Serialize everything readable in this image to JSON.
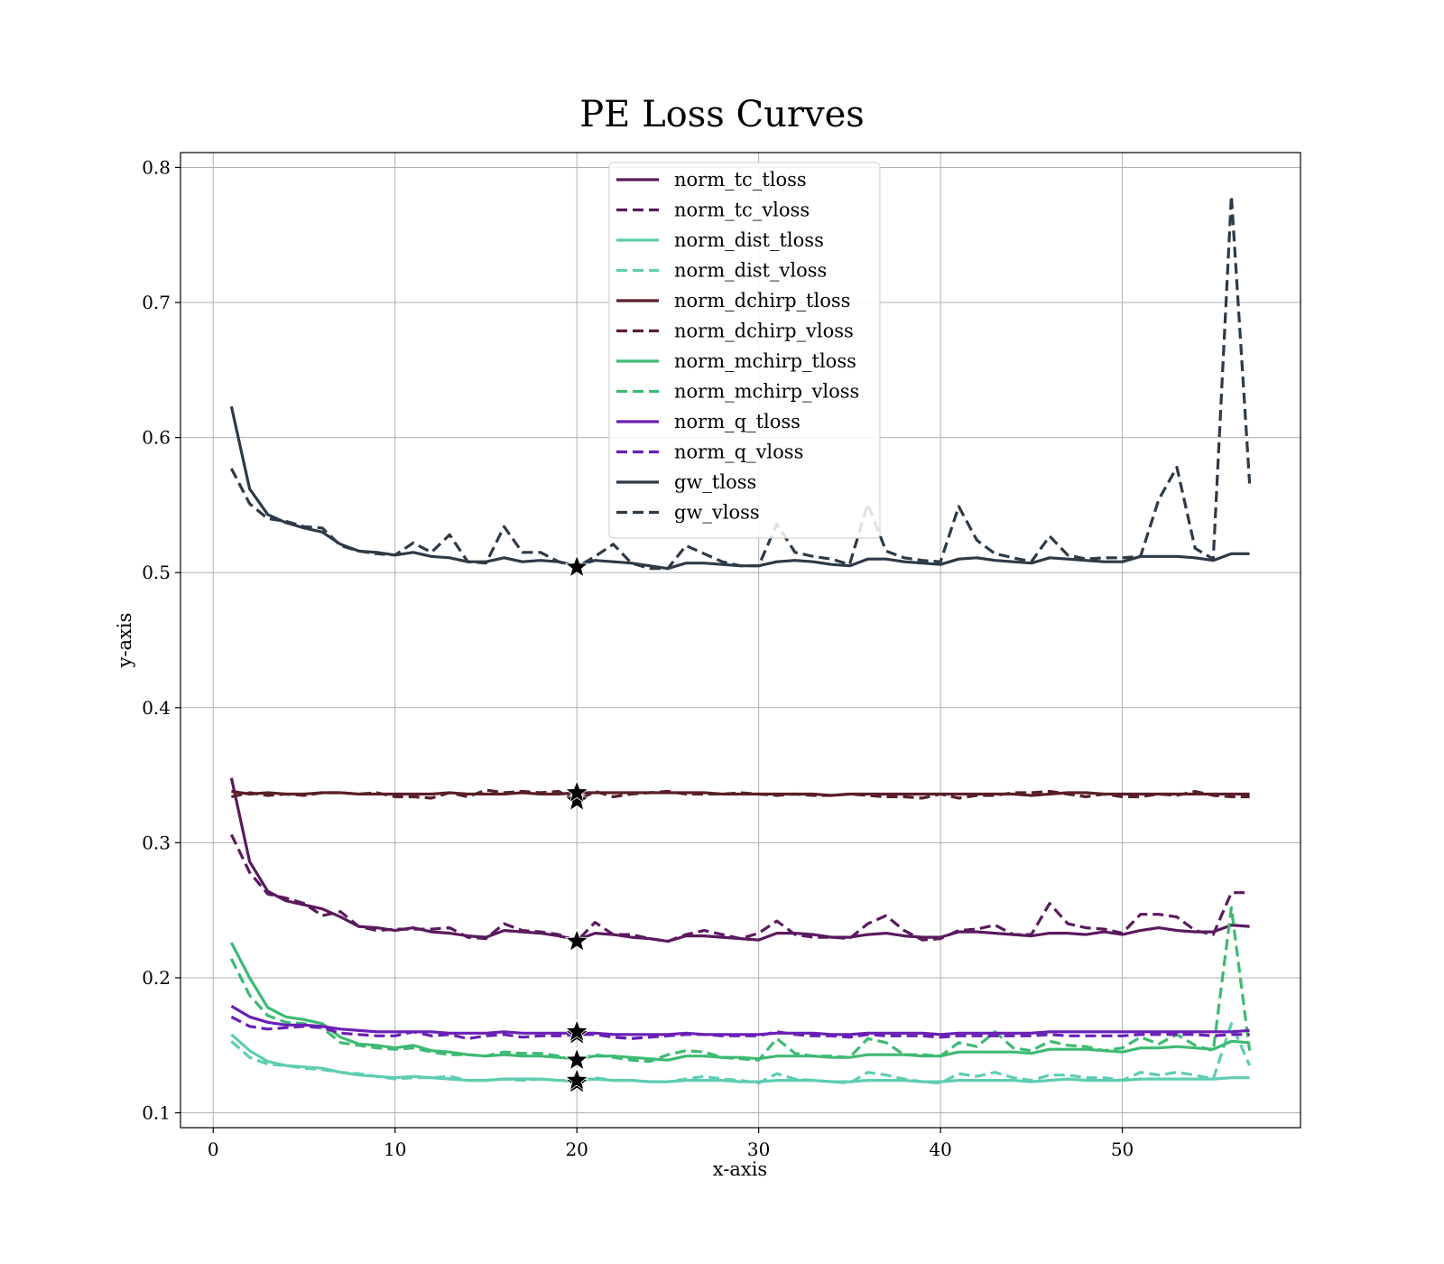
{
  "chart_data": {
    "type": "line",
    "title": "PE Loss Curves",
    "xlabel": "x-axis",
    "ylabel": "y-axis",
    "xlim": [
      -1.8,
      59.8
    ],
    "ylim": [
      0.089,
      0.811
    ],
    "xticks": [
      0,
      10,
      20,
      30,
      40,
      50
    ],
    "yticks": [
      0.1,
      0.2,
      0.3,
      0.4,
      0.5,
      0.6,
      0.7,
      0.8
    ],
    "grid": true,
    "legend_position": "upper center",
    "x": [
      1,
      2,
      3,
      4,
      5,
      6,
      7,
      8,
      9,
      10,
      11,
      12,
      13,
      14,
      15,
      16,
      17,
      18,
      19,
      20,
      21,
      22,
      23,
      24,
      25,
      26,
      27,
      28,
      29,
      30,
      31,
      32,
      33,
      34,
      35,
      36,
      37,
      38,
      39,
      40,
      41,
      42,
      43,
      44,
      45,
      46,
      47,
      48,
      49,
      50,
      51,
      52,
      53,
      54,
      55,
      56,
      57
    ],
    "best_epoch_markers": [
      {
        "x": 20,
        "y": 0.227
      },
      {
        "x": 20,
        "y": 0.331
      },
      {
        "x": 20,
        "y": 0.337
      },
      {
        "x": 20,
        "y": 0.158
      },
      {
        "x": 20,
        "y": 0.16
      },
      {
        "x": 20,
        "y": 0.139
      },
      {
        "x": 20,
        "y": 0.122
      },
      {
        "x": 20,
        "y": 0.124
      },
      {
        "x": 20,
        "y": 0.504
      }
    ],
    "series": [
      {
        "name": "norm_tc_tloss",
        "color": "#5a1a5e",
        "dash": "solid",
        "values": [
          0.348,
          0.286,
          0.264,
          0.257,
          0.254,
          0.251,
          0.245,
          0.238,
          0.237,
          0.235,
          0.237,
          0.234,
          0.233,
          0.231,
          0.23,
          0.235,
          0.234,
          0.233,
          0.231,
          0.228,
          0.233,
          0.232,
          0.23,
          0.229,
          0.227,
          0.231,
          0.231,
          0.23,
          0.229,
          0.228,
          0.233,
          0.233,
          0.232,
          0.23,
          0.23,
          0.232,
          0.233,
          0.231,
          0.23,
          0.23,
          0.234,
          0.234,
          0.233,
          0.232,
          0.231,
          0.233,
          0.233,
          0.232,
          0.234,
          0.232,
          0.235,
          0.237,
          0.235,
          0.234,
          0.234,
          0.239,
          0.238
        ]
      },
      {
        "name": "norm_tc_vloss",
        "color": "#5a1a5e",
        "dash": "dashed",
        "values": [
          0.306,
          0.278,
          0.262,
          0.259,
          0.255,
          0.246,
          0.249,
          0.238,
          0.235,
          0.236,
          0.236,
          0.236,
          0.237,
          0.23,
          0.229,
          0.24,
          0.235,
          0.234,
          0.232,
          0.227,
          0.241,
          0.232,
          0.232,
          0.229,
          0.227,
          0.232,
          0.235,
          0.232,
          0.229,
          0.233,
          0.242,
          0.232,
          0.23,
          0.23,
          0.229,
          0.24,
          0.246,
          0.235,
          0.228,
          0.229,
          0.235,
          0.236,
          0.239,
          0.232,
          0.232,
          0.255,
          0.24,
          0.237,
          0.236,
          0.233,
          0.247,
          0.247,
          0.245,
          0.235,
          0.232,
          0.263,
          0.263
        ]
      },
      {
        "name": "norm_dist_tloss",
        "color": "#5ecdb0",
        "dash": "solid",
        "values": [
          0.158,
          0.146,
          0.138,
          0.135,
          0.134,
          0.133,
          0.13,
          0.128,
          0.127,
          0.126,
          0.127,
          0.126,
          0.125,
          0.124,
          0.124,
          0.125,
          0.125,
          0.125,
          0.124,
          0.124,
          0.125,
          0.124,
          0.124,
          0.123,
          0.123,
          0.124,
          0.124,
          0.124,
          0.123,
          0.123,
          0.124,
          0.124,
          0.124,
          0.123,
          0.123,
          0.124,
          0.124,
          0.124,
          0.123,
          0.123,
          0.124,
          0.124,
          0.124,
          0.124,
          0.123,
          0.124,
          0.125,
          0.124,
          0.124,
          0.124,
          0.125,
          0.125,
          0.125,
          0.125,
          0.125,
          0.126,
          0.126
        ]
      },
      {
        "name": "norm_dist_vloss",
        "color": "#5ecdb0",
        "dash": "dashed",
        "values": [
          0.153,
          0.141,
          0.136,
          0.135,
          0.133,
          0.132,
          0.13,
          0.129,
          0.127,
          0.125,
          0.126,
          0.126,
          0.127,
          0.124,
          0.124,
          0.125,
          0.124,
          0.125,
          0.124,
          0.123,
          0.126,
          0.124,
          0.124,
          0.123,
          0.123,
          0.125,
          0.127,
          0.125,
          0.124,
          0.122,
          0.129,
          0.125,
          0.124,
          0.123,
          0.122,
          0.13,
          0.128,
          0.125,
          0.123,
          0.122,
          0.129,
          0.127,
          0.13,
          0.126,
          0.124,
          0.128,
          0.128,
          0.126,
          0.126,
          0.124,
          0.13,
          0.128,
          0.13,
          0.128,
          0.125,
          0.166,
          0.135
        ]
      },
      {
        "name": "norm_dchirp_tloss",
        "color": "#5a1f2a",
        "dash": "solid",
        "values": [
          0.338,
          0.336,
          0.337,
          0.336,
          0.336,
          0.337,
          0.337,
          0.336,
          0.336,
          0.336,
          0.336,
          0.336,
          0.337,
          0.336,
          0.336,
          0.336,
          0.337,
          0.336,
          0.336,
          0.337,
          0.337,
          0.337,
          0.337,
          0.337,
          0.337,
          0.337,
          0.337,
          0.336,
          0.336,
          0.336,
          0.336,
          0.336,
          0.336,
          0.335,
          0.336,
          0.336,
          0.336,
          0.336,
          0.336,
          0.336,
          0.336,
          0.336,
          0.336,
          0.336,
          0.335,
          0.336,
          0.337,
          0.337,
          0.336,
          0.336,
          0.336,
          0.336,
          0.336,
          0.336,
          0.336,
          0.336,
          0.336
        ]
      },
      {
        "name": "norm_dchirp_vloss",
        "color": "#5a1f2a",
        "dash": "dashed",
        "values": [
          0.334,
          0.337,
          0.335,
          0.336,
          0.335,
          0.337,
          0.337,
          0.336,
          0.337,
          0.334,
          0.334,
          0.333,
          0.337,
          0.334,
          0.339,
          0.337,
          0.338,
          0.337,
          0.338,
          0.331,
          0.338,
          0.334,
          0.336,
          0.337,
          0.338,
          0.336,
          0.336,
          0.336,
          0.337,
          0.336,
          0.335,
          0.336,
          0.335,
          0.335,
          0.336,
          0.335,
          0.334,
          0.334,
          0.333,
          0.336,
          0.333,
          0.335,
          0.335,
          0.337,
          0.337,
          0.338,
          0.336,
          0.334,
          0.336,
          0.334,
          0.334,
          0.336,
          0.335,
          0.338,
          0.335,
          0.334,
          0.334
        ]
      },
      {
        "name": "norm_mchirp_tloss",
        "color": "#3dba73",
        "dash": "solid",
        "values": [
          0.226,
          0.2,
          0.178,
          0.171,
          0.169,
          0.166,
          0.156,
          0.151,
          0.15,
          0.148,
          0.15,
          0.146,
          0.145,
          0.143,
          0.142,
          0.143,
          0.142,
          0.142,
          0.141,
          0.14,
          0.142,
          0.142,
          0.141,
          0.14,
          0.139,
          0.142,
          0.142,
          0.141,
          0.141,
          0.14,
          0.142,
          0.142,
          0.142,
          0.141,
          0.141,
          0.143,
          0.143,
          0.143,
          0.142,
          0.142,
          0.145,
          0.145,
          0.145,
          0.145,
          0.144,
          0.147,
          0.147,
          0.147,
          0.146,
          0.145,
          0.148,
          0.148,
          0.149,
          0.148,
          0.147,
          0.153,
          0.152
        ]
      },
      {
        "name": "norm_mchirp_vloss",
        "color": "#3dba73",
        "dash": "dashed",
        "values": [
          0.214,
          0.187,
          0.172,
          0.167,
          0.166,
          0.163,
          0.152,
          0.15,
          0.148,
          0.147,
          0.148,
          0.145,
          0.143,
          0.143,
          0.142,
          0.145,
          0.144,
          0.144,
          0.142,
          0.139,
          0.143,
          0.141,
          0.139,
          0.138,
          0.143,
          0.146,
          0.145,
          0.141,
          0.14,
          0.139,
          0.155,
          0.144,
          0.142,
          0.142,
          0.141,
          0.155,
          0.152,
          0.143,
          0.143,
          0.142,
          0.152,
          0.149,
          0.16,
          0.148,
          0.146,
          0.153,
          0.15,
          0.149,
          0.146,
          0.148,
          0.156,
          0.151,
          0.158,
          0.15,
          0.146,
          0.252,
          0.146
        ]
      },
      {
        "name": "norm_q_tloss",
        "color": "#6a1fb5",
        "dash": "solid",
        "values": [
          0.179,
          0.171,
          0.167,
          0.165,
          0.165,
          0.164,
          0.162,
          0.161,
          0.16,
          0.16,
          0.16,
          0.16,
          0.159,
          0.159,
          0.159,
          0.16,
          0.159,
          0.159,
          0.159,
          0.159,
          0.159,
          0.158,
          0.158,
          0.158,
          0.158,
          0.159,
          0.158,
          0.158,
          0.158,
          0.158,
          0.159,
          0.159,
          0.159,
          0.158,
          0.158,
          0.159,
          0.159,
          0.159,
          0.159,
          0.158,
          0.159,
          0.159,
          0.159,
          0.159,
          0.159,
          0.16,
          0.16,
          0.16,
          0.16,
          0.16,
          0.16,
          0.16,
          0.16,
          0.16,
          0.16,
          0.16,
          0.161
        ]
      },
      {
        "name": "norm_q_vloss",
        "color": "#6a1fb5",
        "dash": "dashed",
        "values": [
          0.171,
          0.164,
          0.162,
          0.163,
          0.164,
          0.163,
          0.159,
          0.158,
          0.157,
          0.157,
          0.16,
          0.157,
          0.158,
          0.155,
          0.157,
          0.158,
          0.156,
          0.157,
          0.157,
          0.158,
          0.158,
          0.156,
          0.155,
          0.156,
          0.157,
          0.158,
          0.158,
          0.157,
          0.157,
          0.157,
          0.16,
          0.158,
          0.157,
          0.157,
          0.156,
          0.158,
          0.157,
          0.157,
          0.157,
          0.156,
          0.157,
          0.157,
          0.157,
          0.157,
          0.157,
          0.158,
          0.157,
          0.157,
          0.157,
          0.157,
          0.158,
          0.158,
          0.158,
          0.158,
          0.157,
          0.158,
          0.158
        ]
      },
      {
        "name": "gw_tloss",
        "color": "#2d3a47",
        "dash": "solid",
        "values": [
          0.623,
          0.562,
          0.543,
          0.537,
          0.533,
          0.53,
          0.521,
          0.516,
          0.515,
          0.513,
          0.515,
          0.512,
          0.511,
          0.508,
          0.508,
          0.511,
          0.508,
          0.509,
          0.508,
          0.505,
          0.509,
          0.508,
          0.507,
          0.505,
          0.503,
          0.507,
          0.507,
          0.506,
          0.505,
          0.505,
          0.508,
          0.509,
          0.508,
          0.506,
          0.505,
          0.51,
          0.51,
          0.508,
          0.507,
          0.506,
          0.51,
          0.511,
          0.509,
          0.508,
          0.507,
          0.511,
          0.51,
          0.509,
          0.508,
          0.508,
          0.512,
          0.512,
          0.512,
          0.511,
          0.509,
          0.514,
          0.514
        ]
      },
      {
        "name": "gw_vloss",
        "color": "#2d3a47",
        "dash": "dashed",
        "values": [
          0.577,
          0.551,
          0.54,
          0.538,
          0.534,
          0.533,
          0.52,
          0.516,
          0.514,
          0.513,
          0.522,
          0.515,
          0.528,
          0.508,
          0.507,
          0.534,
          0.515,
          0.515,
          0.508,
          0.504,
          0.512,
          0.521,
          0.507,
          0.503,
          0.503,
          0.52,
          0.514,
          0.508,
          0.505,
          0.505,
          0.536,
          0.515,
          0.512,
          0.51,
          0.506,
          0.551,
          0.516,
          0.511,
          0.509,
          0.508,
          0.549,
          0.524,
          0.514,
          0.511,
          0.508,
          0.527,
          0.513,
          0.51,
          0.511,
          0.511,
          0.512,
          0.554,
          0.578,
          0.518,
          0.51,
          0.779,
          0.566
        ]
      }
    ]
  }
}
